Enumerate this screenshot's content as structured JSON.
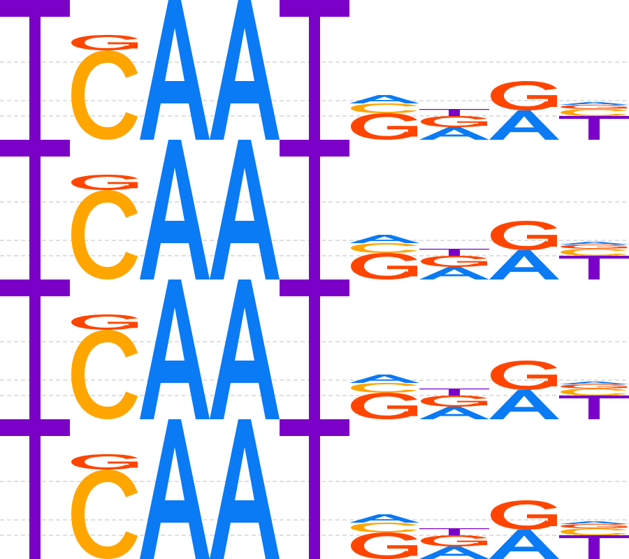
{
  "colors": {
    "A": "#0A7AF5",
    "C": "#FFA500",
    "G": "#FF4500",
    "T": "#7B00C8",
    "guide": "#BFBFBF",
    "background": "#FFFFFF"
  },
  "logo": {
    "repeat_count": 4,
    "positions": [
      {
        "index": 1,
        "stack": [
          {
            "base": "T",
            "share": 1.0
          }
        ]
      },
      {
        "index": 2,
        "stack": [
          {
            "base": "C",
            "share": 0.64
          },
          {
            "base": "G",
            "share": 0.11
          }
        ]
      },
      {
        "index": 3,
        "stack": [
          {
            "base": "A",
            "share": 1.0
          }
        ]
      },
      {
        "index": 4,
        "stack": [
          {
            "base": "A",
            "share": 1.0
          }
        ]
      },
      {
        "index": 5,
        "stack": [
          {
            "base": "T",
            "share": 1.0
          }
        ]
      },
      {
        "index": 6,
        "stack": [
          {
            "base": "G",
            "share": 0.19
          },
          {
            "base": "C",
            "share": 0.07
          },
          {
            "base": "A",
            "share": 0.06
          }
        ]
      },
      {
        "index": 7,
        "stack": [
          {
            "base": "A",
            "share": 0.09
          },
          {
            "base": "G",
            "share": 0.08
          },
          {
            "base": "T",
            "share": 0.05
          }
        ]
      },
      {
        "index": 8,
        "stack": [
          {
            "base": "A",
            "share": 0.21
          },
          {
            "base": "G",
            "share": 0.21
          }
        ]
      },
      {
        "index": 9,
        "stack": [
          {
            "base": "T",
            "share": 0.17
          },
          {
            "base": "C",
            "share": 0.05
          },
          {
            "base": "G",
            "share": 0.03
          },
          {
            "base": "A",
            "share": 0.02
          }
        ]
      }
    ]
  }
}
